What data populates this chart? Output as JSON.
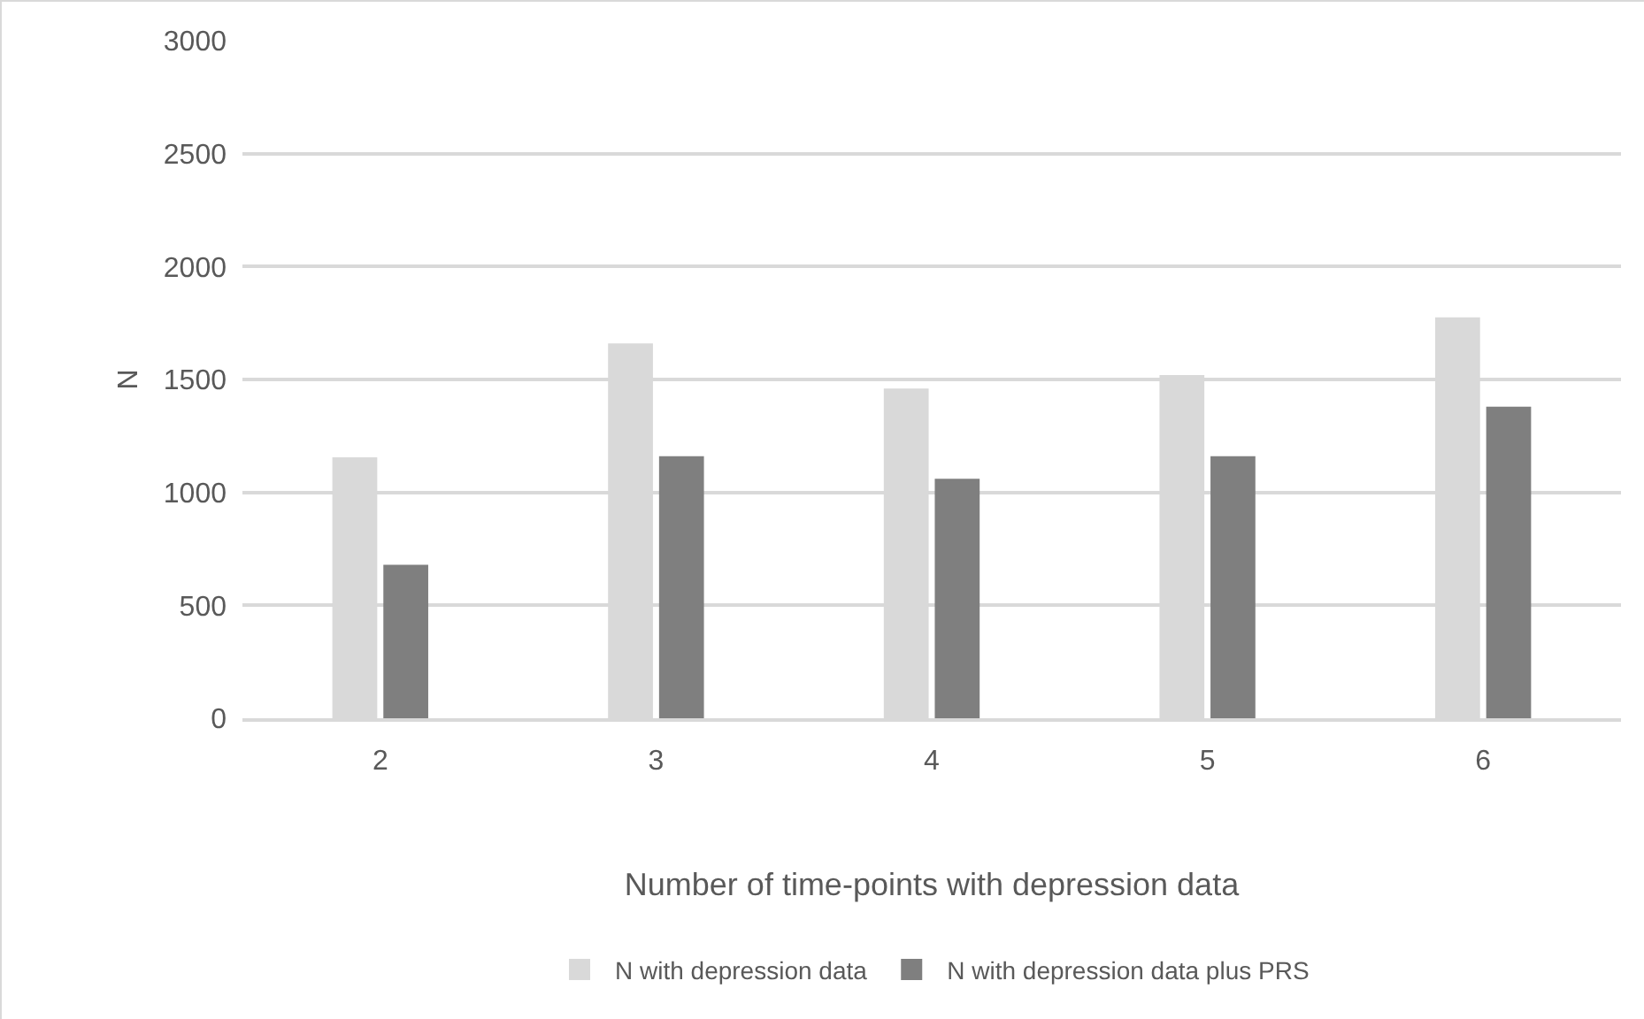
{
  "chart_data": {
    "type": "bar",
    "xlabel": "Number of time-points with depression data",
    "ylabel": "N",
    "categories": [
      "2",
      "3",
      "4",
      "5",
      "6"
    ],
    "series": [
      {
        "name": "N with depression data",
        "color": "#d9d9d9",
        "values": [
          1155,
          1660,
          1460,
          1520,
          1775
        ]
      },
      {
        "name": "N with depression data plus PRS",
        "color": "#7f7f7f",
        "values": [
          680,
          1160,
          1060,
          1160,
          1380
        ]
      }
    ],
    "ylim": [
      0,
      3000
    ],
    "yticks": [
      0,
      500,
      1000,
      1500,
      2000,
      2500,
      3000
    ],
    "grid": "y",
    "legend": "bottom"
  }
}
